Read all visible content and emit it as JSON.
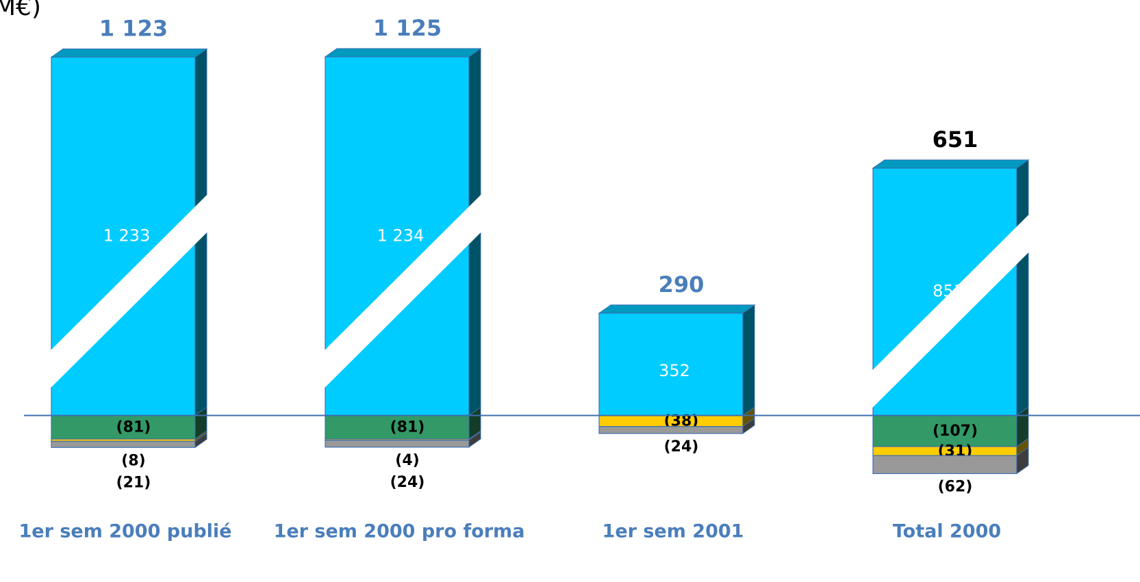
{
  "chart_data": {
    "type": "stacked_bar_3d",
    "title": "M€)",
    "categories": [
      "1er sem 2000 publié",
      "1er sem 2000 pro forma",
      "1er sem 2001",
      "Total 2000"
    ],
    "totals": [
      1123,
      1125,
      290,
      651
    ],
    "total_labels": [
      "1 123",
      "1 125",
      "290",
      "651"
    ],
    "total_colors": [
      "#4a7ebb",
      "#4a7ebb",
      "#4a7ebb",
      "#000000"
    ],
    "axis_breaks": [
      true,
      true,
      false,
      true
    ],
    "series": [
      {
        "color": "#00ccff",
        "values": [
          1233,
          1234,
          352,
          851
        ],
        "value_labels": [
          "1 233",
          "1 234",
          "352",
          "851"
        ]
      },
      {
        "color": "#339966",
        "values": [
          -81,
          -81,
          null,
          -107
        ],
        "value_labels": [
          "(81)",
          "(81)",
          null,
          "(107)"
        ]
      },
      {
        "color": "#ffcc00",
        "values": [
          -8,
          -4,
          -38,
          -31
        ],
        "value_labels": [
          "(8)",
          "(4)",
          "(38)",
          "(31)"
        ]
      },
      {
        "color": "#999999",
        "values": [
          -21,
          -24,
          -24,
          -62
        ],
        "value_labels": [
          "(21)",
          "(24)",
          "(24)",
          "(62)"
        ]
      }
    ],
    "ylim": [
      -220,
      1300
    ]
  }
}
